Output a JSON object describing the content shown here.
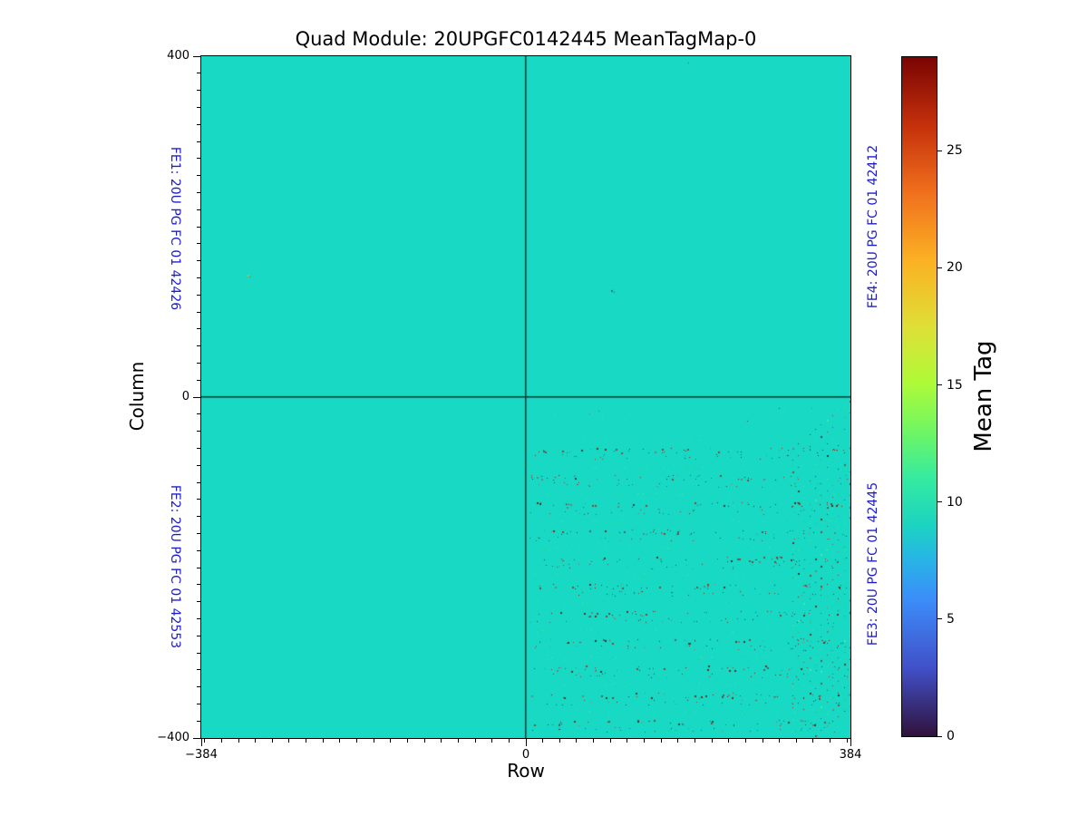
{
  "chart_data": {
    "type": "heatmap",
    "title": "Quad Module: 20UPGFC0142445 MeanTagMap-0",
    "xlabel": "Row",
    "ylabel": "Column",
    "x_range": [
      -384,
      384
    ],
    "y_range": [
      -400,
      400
    ],
    "x_ticks": [
      {
        "value": -384,
        "label": "−384"
      },
      {
        "value": 0,
        "label": "0"
      },
      {
        "value": 384,
        "label": "384"
      }
    ],
    "y_ticks": [
      {
        "value": 400,
        "label": "400"
      },
      {
        "value": 0,
        "label": "0"
      },
      {
        "value": -400,
        "label": "−400"
      }
    ],
    "minor_tick_interval": 20,
    "grid": false,
    "legend": null,
    "uniform_value": 9,
    "background_color": "#17d9c4",
    "quadrant_divider_color": "#0d2f2b",
    "fe_label_color": "#1c1ccf",
    "fe_labels": [
      {
        "name": "FE1",
        "text": "FE1: 20U PG FC 01 42426",
        "side": "left",
        "quadrant": "top-left"
      },
      {
        "name": "FE2",
        "text": "FE2: 20U PG FC 01 42553",
        "side": "left",
        "quadrant": "bottom-left"
      },
      {
        "name": "FE3",
        "text": "FE3: 20U PG FC 01 42445",
        "side": "right",
        "quadrant": "bottom-right"
      },
      {
        "name": "FE4",
        "text": "FE4: 20U PG FC 01 42412",
        "side": "right",
        "quadrant": "top-right"
      }
    ],
    "colorbar": {
      "label": "Mean Tag",
      "min": 0,
      "max": 29,
      "ticks": [
        {
          "value": 0,
          "label": "0"
        },
        {
          "value": 5,
          "label": "5"
        },
        {
          "value": 10,
          "label": "10"
        },
        {
          "value": 15,
          "label": "15"
        },
        {
          "value": 20,
          "label": "20"
        },
        {
          "value": 25,
          "label": "25"
        }
      ],
      "gradient": [
        [
          0.0,
          "#30123b"
        ],
        [
          0.1,
          "#4150c8"
        ],
        [
          0.2,
          "#3c8cf9"
        ],
        [
          0.26,
          "#27b4e6"
        ],
        [
          0.31,
          "#1bd3c0"
        ],
        [
          0.38,
          "#35eba0"
        ],
        [
          0.45,
          "#70f662"
        ],
        [
          0.52,
          "#aefa37"
        ],
        [
          0.6,
          "#dde037"
        ],
        [
          0.7,
          "#fbb123"
        ],
        [
          0.8,
          "#f0701d"
        ],
        [
          0.9,
          "#c4300b"
        ],
        [
          1.0,
          "#7a0403"
        ]
      ]
    },
    "isolated_points": [
      {
        "row": -329,
        "col": 144,
        "color": "#e8b020",
        "size": 2
      },
      {
        "row": -327,
        "col": 141,
        "color": "#cc4414",
        "size": 1
      },
      {
        "row": 101,
        "col": 126,
        "color": "#2e6a72",
        "size": 2
      },
      {
        "row": 104,
        "col": 123,
        "color": "#49555e",
        "size": 1
      },
      {
        "row": 192,
        "col": 393,
        "color": "#c03818",
        "size": 1
      }
    ],
    "noise_region": {
      "quadrant": "bottom-right (FE3)",
      "row_range": [
        4,
        383
      ],
      "col_range": [
        -399,
        -10
      ],
      "bands": {
        "first_col": -62,
        "spacing": -32,
        "count": 11,
        "main_specks": 46,
        "secondary_specks": 30,
        "green_specks": 38
      },
      "right_strip": {
        "first_col": -4,
        "line_spacing": -13.8,
        "line_count": 27,
        "dots_per_line": 11,
        "row_start": 383,
        "row_step": -6.8,
        "col_step": -5.6
      },
      "sparse_top": {
        "count": 12,
        "col_min": -30,
        "col_max": -12
      },
      "dark_colors": [
        "#7a2412",
        "#8a4530",
        "#5a5a5a",
        "#7c7c74",
        "#343434",
        "#9c3a20"
      ],
      "green_colors": [
        "#2fe896",
        "#49eab4",
        "#27d184"
      ],
      "seed": 20
    }
  }
}
